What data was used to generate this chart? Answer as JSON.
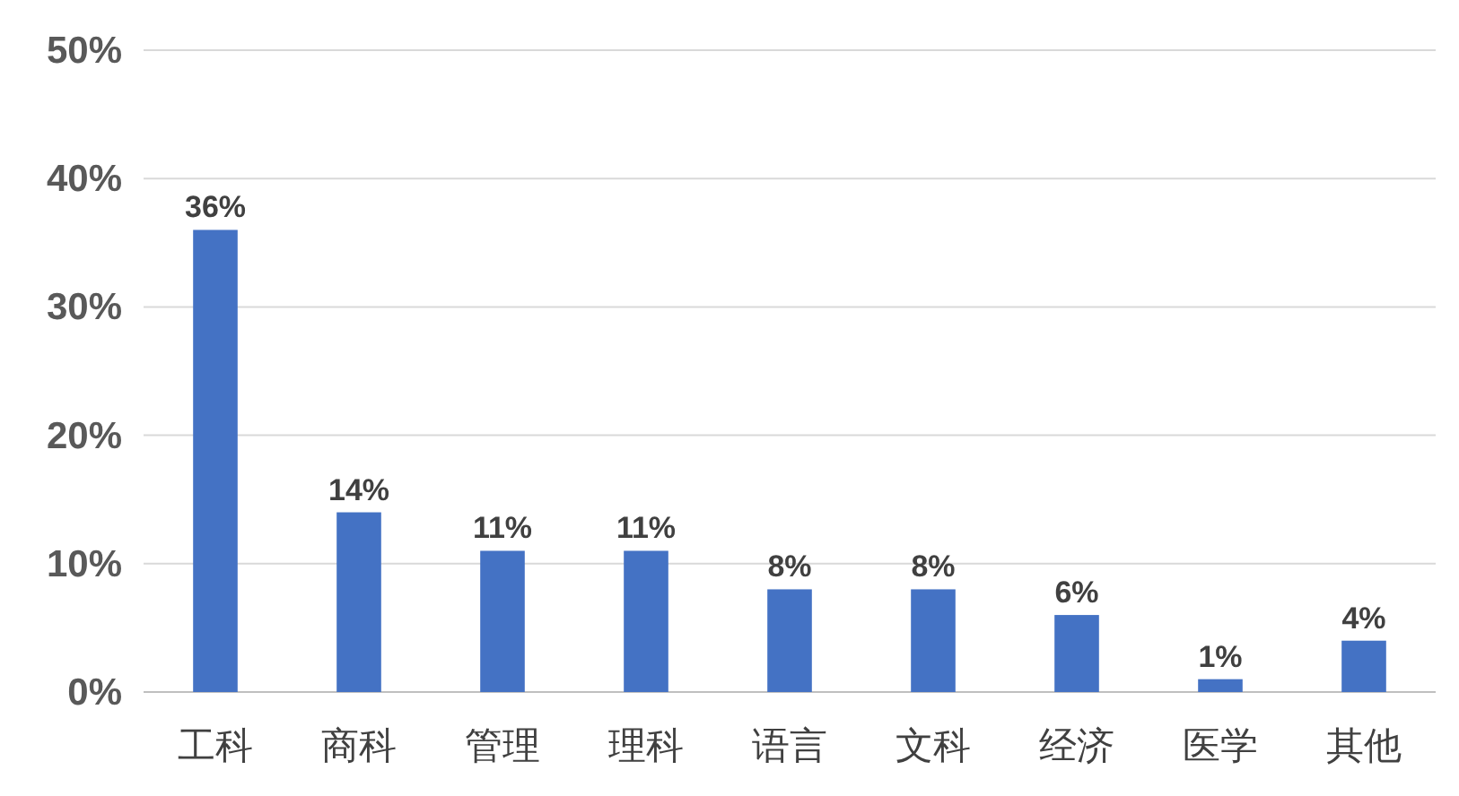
{
  "chart_data": {
    "type": "bar",
    "categories": [
      "工科",
      "商科",
      "管理",
      "理科",
      "语言",
      "文科",
      "经济",
      "医学",
      "其他"
    ],
    "values": [
      36,
      14,
      11,
      11,
      8,
      8,
      6,
      1,
      4
    ],
    "color": "#4472c4",
    "ylim": [
      0,
      50
    ],
    "yticks": [
      {
        "value": 0,
        "label": "0%"
      },
      {
        "value": 10,
        "label": "10%"
      },
      {
        "value": 20,
        "label": "20%"
      },
      {
        "value": 30,
        "label": "30%"
      },
      {
        "value": 40,
        "label": "40%"
      },
      {
        "value": 50,
        "label": "50%"
      }
    ],
    "grid": "y",
    "data_labels": true,
    "value_labels": [
      "36%",
      "14%",
      "11%",
      "11%",
      "8%",
      "8%",
      "6%",
      "1%",
      "4%"
    ]
  }
}
